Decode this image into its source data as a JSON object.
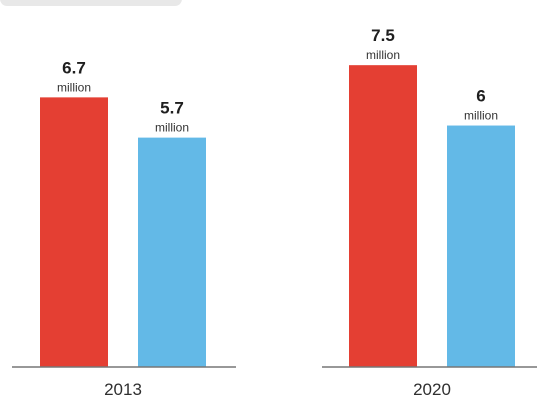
{
  "chart_data": {
    "type": "bar",
    "categories": [
      "2013",
      "2020"
    ],
    "series": [
      {
        "values": [
          6.7,
          7.5
        ],
        "data_labels": [
          "6.7",
          "7.5"
        ],
        "color": "#e43f33"
      },
      {
        "values": [
          5.7,
          6
        ],
        "data_labels": [
          "5.7",
          "6"
        ],
        "color": "#63b9e7"
      }
    ],
    "label_unit": "million",
    "ylim": [
      0,
      8.2
    ],
    "grid": false,
    "legend": "none"
  }
}
